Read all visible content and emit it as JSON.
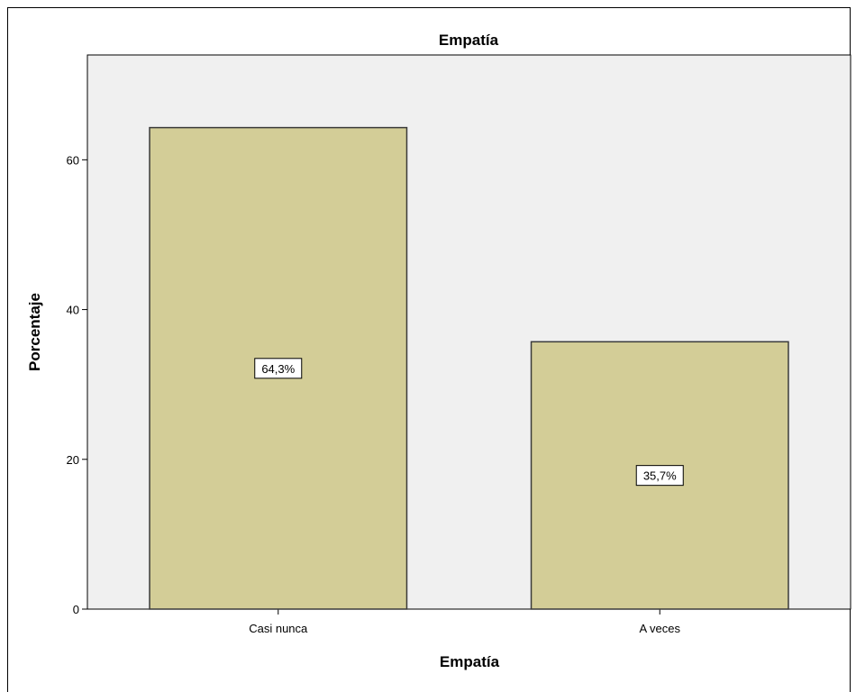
{
  "chart_data": {
    "type": "bar",
    "title": "Empatía",
    "xlabel": "Empatía",
    "ylabel": "Porcentaje",
    "categories": [
      "Casi nunca",
      "A veces"
    ],
    "values": [
      64.3,
      35.7
    ],
    "data_labels": [
      "64,3%",
      "35,7%"
    ],
    "ylim": [
      0,
      74
    ],
    "yticks": [
      0,
      20,
      40,
      60
    ],
    "grid": false,
    "colors": {
      "bar_fill": "#d3cd97",
      "bar_stroke": "#3a3a3a",
      "plot_bg": "#f0f0f0"
    }
  }
}
